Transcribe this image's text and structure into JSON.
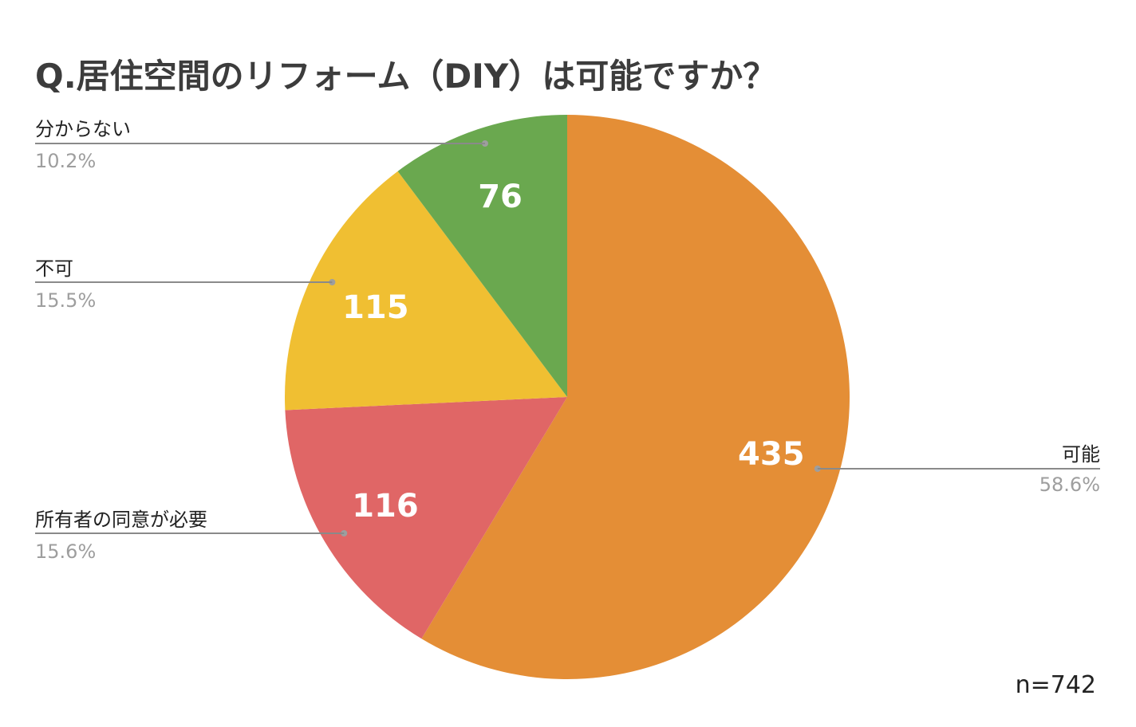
{
  "chart_data": {
    "type": "pie",
    "title": "Q.居住空間のリフォーム（DIY）は可能ですか？",
    "slices": [
      {
        "name": "可能",
        "value": 435,
        "percent_label": "58.6%",
        "color": "#E48E36"
      },
      {
        "name": "所有者の同意が必要",
        "value": 116,
        "percent_label": "15.6%",
        "color": "#E06666"
      },
      {
        "name": "不可",
        "value": 115,
        "percent_label": "15.5%",
        "color": "#F0BF32"
      },
      {
        "name": "分からない",
        "value": 76,
        "percent_label": "10.2%",
        "color": "#6AA84F"
      }
    ],
    "start": "top",
    "direction": "clockwise",
    "legend": "outside labels with leader lines",
    "note": "n=742"
  }
}
